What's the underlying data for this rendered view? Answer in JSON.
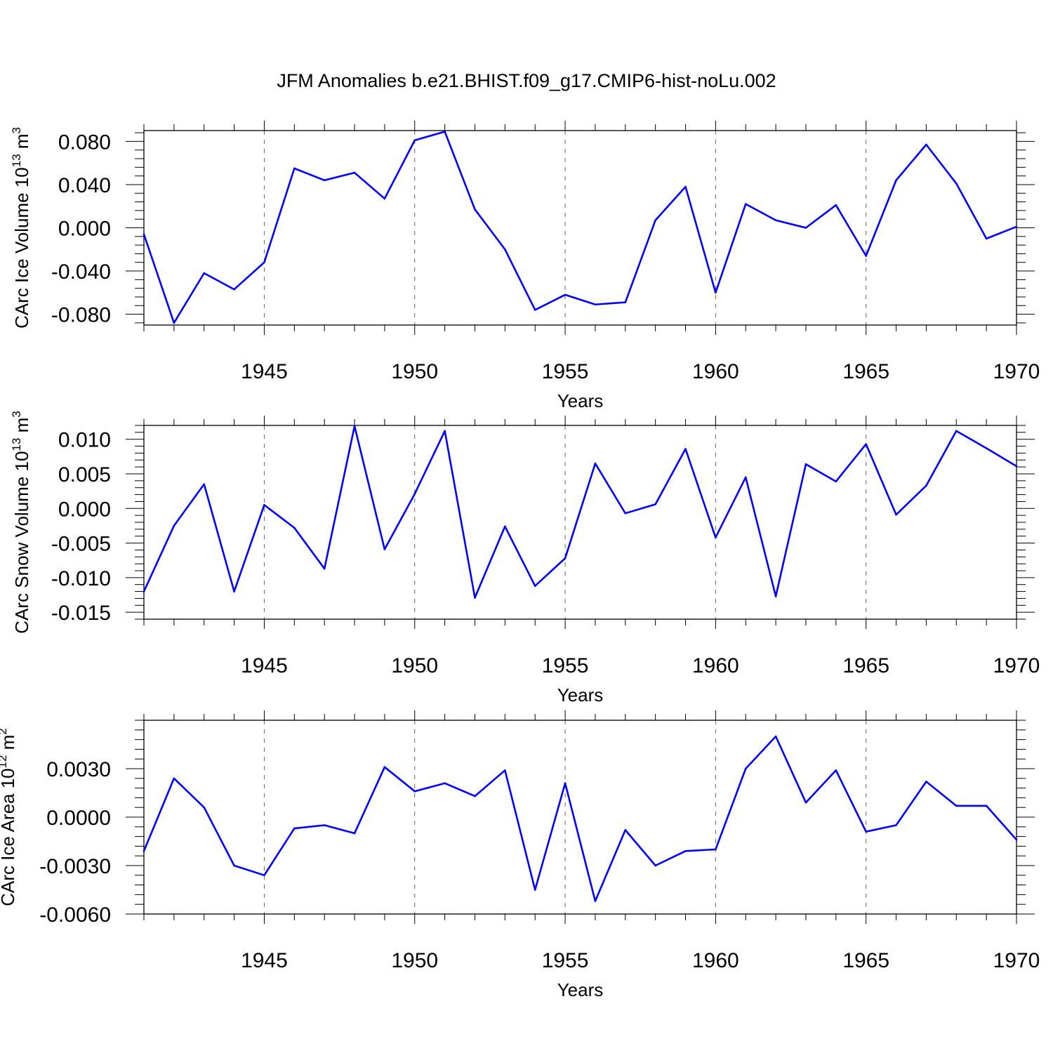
{
  "chart_data": [
    {
      "type": "line",
      "title": "JFM Anomalies b.e21.BHIST.f09_g17.CMIP6-hist-noLu.002",
      "xlabel": "Years",
      "ylabel": {
        "main": "CArc Ice Volume 10",
        "exponent": "13",
        "unit": " m",
        "unit_exponent": "3"
      },
      "xlim": [
        1941,
        1970
      ],
      "ylim": [
        -0.09,
        0.09
      ],
      "x_ticks": [
        1945,
        1950,
        1955,
        1960,
        1965,
        1970
      ],
      "x_tick_labels": [
        "1945",
        "1950",
        "1955",
        "1960",
        "1965",
        "1970"
      ],
      "y_ticks": [
        0.08,
        0.04,
        0.0,
        -0.04,
        -0.08
      ],
      "y_tick_labels": [
        "0.080",
        "0.040",
        "0.000",
        "-0.040",
        "-0.080"
      ],
      "grid": "dashed vertical lines at x ticks",
      "line_color": "#0000ff",
      "series": [
        {
          "name": "CArc Ice Volume",
          "x": [
            1941,
            1942,
            1943,
            1944,
            1945,
            1946,
            1947,
            1948,
            1949,
            1950,
            1951,
            1952,
            1953,
            1954,
            1955,
            1956,
            1957,
            1958,
            1959,
            1960,
            1961,
            1962,
            1963,
            1964,
            1965,
            1966,
            1967,
            1968,
            1969,
            1970
          ],
          "values": [
            -0.006,
            -0.088,
            -0.042,
            -0.057,
            -0.032,
            0.055,
            0.044,
            0.051,
            0.027,
            0.081,
            0.089,
            0.017,
            -0.02,
            -0.076,
            -0.062,
            -0.071,
            -0.069,
            0.007,
            0.038,
            -0.06,
            0.022,
            0.007,
            0.0,
            0.021,
            -0.026,
            0.044,
            0.077,
            0.041,
            -0.01,
            0.001
          ]
        }
      ]
    },
    {
      "type": "line",
      "title": "",
      "xlabel": "Years",
      "ylabel": {
        "main": "CArc Snow Volume 10",
        "exponent": "13",
        "unit": " m",
        "unit_exponent": "3"
      },
      "xlim": [
        1941,
        1970
      ],
      "ylim": [
        -0.016,
        0.012
      ],
      "x_ticks": [
        1945,
        1950,
        1955,
        1960,
        1965,
        1970
      ],
      "x_tick_labels": [
        "1945",
        "1950",
        "1955",
        "1960",
        "1965",
        "1970"
      ],
      "y_ticks": [
        0.01,
        0.005,
        0.0,
        -0.005,
        -0.01,
        -0.015
      ],
      "y_tick_labels": [
        "0.010",
        "0.005",
        "0.000",
        "-0.005",
        "-0.010",
        "-0.015"
      ],
      "grid": "dashed vertical lines at x ticks",
      "line_color": "#0000ff",
      "series": [
        {
          "name": "CArc Snow Volume",
          "x": [
            1941,
            1942,
            1943,
            1944,
            1945,
            1946,
            1947,
            1948,
            1949,
            1950,
            1951,
            1952,
            1953,
            1954,
            1955,
            1956,
            1957,
            1958,
            1959,
            1960,
            1961,
            1962,
            1963,
            1964,
            1965,
            1966,
            1967,
            1968,
            1969,
            1970
          ],
          "values": [
            -0.012,
            -0.0025,
            0.0035,
            -0.012,
            0.0005,
            -0.0028,
            -0.0087,
            0.0119,
            -0.0059,
            0.0021,
            0.0112,
            -0.0129,
            -0.0026,
            -0.0112,
            -0.0072,
            0.0065,
            -0.0007,
            0.0006,
            0.0086,
            -0.0042,
            0.0045,
            -0.0127,
            0.0064,
            0.0039,
            0.0093,
            -0.0009,
            0.0033,
            0.0112,
            0.0087,
            0.0061
          ]
        }
      ]
    },
    {
      "type": "line",
      "title": "",
      "xlabel": "Years",
      "ylabel": {
        "main": "CArc Ice Area 10",
        "exponent": "12",
        "unit": " m",
        "unit_exponent": "2"
      },
      "xlim": [
        1941,
        1970
      ],
      "ylim": [
        -0.006,
        0.006
      ],
      "x_ticks": [
        1945,
        1950,
        1955,
        1960,
        1965,
        1970
      ],
      "x_tick_labels": [
        "1945",
        "1950",
        "1955",
        "1960",
        "1965",
        "1970"
      ],
      "y_ticks": [
        0.003,
        0.0,
        -0.003,
        -0.006
      ],
      "y_tick_labels": [
        "0.0030",
        "0.0000",
        "-0.0030",
        "-0.0060"
      ],
      "grid": "dashed vertical lines at x ticks",
      "line_color": "#0000ff",
      "series": [
        {
          "name": "CArc Ice Area",
          "x": [
            1941,
            1942,
            1943,
            1944,
            1945,
            1946,
            1947,
            1948,
            1949,
            1950,
            1951,
            1952,
            1953,
            1954,
            1955,
            1956,
            1957,
            1958,
            1959,
            1960,
            1961,
            1962,
            1963,
            1964,
            1965,
            1966,
            1967,
            1968,
            1969,
            1970
          ],
          "values": [
            -0.0021,
            0.0024,
            0.0006,
            -0.003,
            -0.0036,
            -0.0007,
            -0.0005,
            -0.001,
            0.0031,
            0.0016,
            0.0021,
            0.0013,
            0.0029,
            -0.0045,
            0.0021,
            -0.0052,
            -0.0008,
            -0.003,
            -0.0021,
            -0.002,
            0.003,
            0.005,
            0.0009,
            0.0029,
            -0.0009,
            -0.0005,
            0.0022,
            0.0007,
            0.0007,
            -0.0014
          ]
        }
      ]
    }
  ]
}
